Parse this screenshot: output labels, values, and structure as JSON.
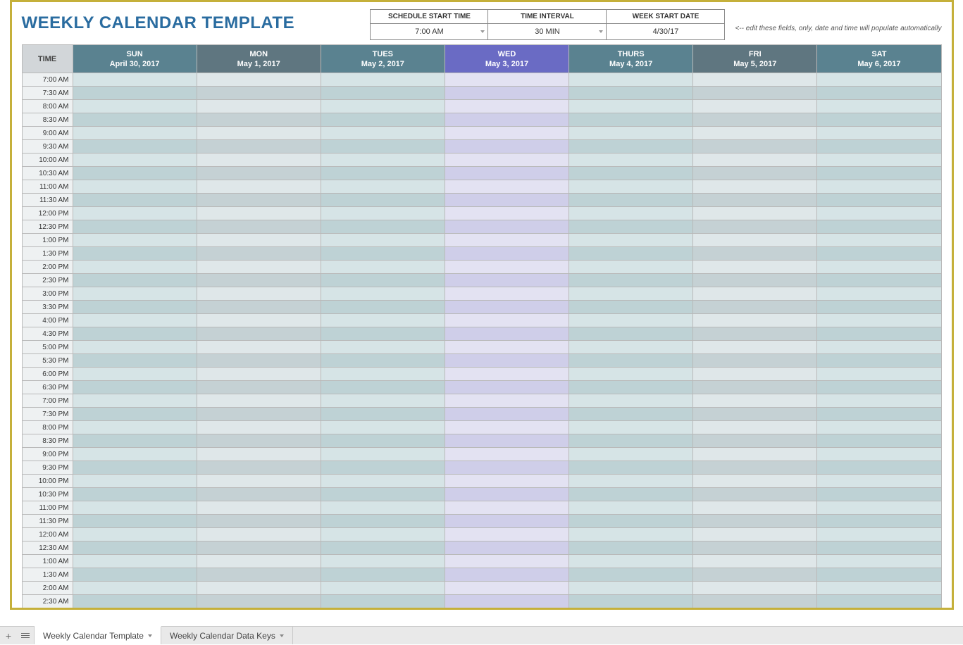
{
  "title": "WEEKLY CALENDAR TEMPLATE",
  "config": {
    "fields": [
      {
        "label": "SCHEDULE START TIME",
        "value": "7:00 AM",
        "dropdown": true
      },
      {
        "label": "TIME INTERVAL",
        "value": "30 MIN",
        "dropdown": true
      },
      {
        "label": "WEEK START DATE",
        "value": "4/30/17",
        "dropdown": false
      }
    ],
    "hint": "<-- edit these fields, only, date and time will populate automatically"
  },
  "calendar": {
    "corner_label": "TIME",
    "days": [
      {
        "abbr": "SUN",
        "date": "April 30, 2017",
        "header_bg": "#5a8290",
        "even_bg": "#d6e4e6",
        "odd_bg": "#bed2d5"
      },
      {
        "abbr": "MON",
        "date": "May 1, 2017",
        "header_bg": "#5f7680",
        "even_bg": "#dfe7e9",
        "odd_bg": "#c5d1d4"
      },
      {
        "abbr": "TUES",
        "date": "May 2, 2017",
        "header_bg": "#5a8290",
        "even_bg": "#d6e4e6",
        "odd_bg": "#bed2d5"
      },
      {
        "abbr": "WED",
        "date": "May 3, 2017",
        "header_bg": "#6a6bc4",
        "even_bg": "#e3e2f2",
        "odd_bg": "#cfcee9"
      },
      {
        "abbr": "THURS",
        "date": "May 4, 2017",
        "header_bg": "#5a8290",
        "even_bg": "#d6e4e6",
        "odd_bg": "#bed2d5"
      },
      {
        "abbr": "FRI",
        "date": "May 5, 2017",
        "header_bg": "#5f7680",
        "even_bg": "#dfe7e9",
        "odd_bg": "#c5d1d4"
      },
      {
        "abbr": "SAT",
        "date": "May 6, 2017",
        "header_bg": "#5a8290",
        "even_bg": "#d6e4e6",
        "odd_bg": "#bed2d5"
      }
    ],
    "time_slots": [
      "7:00 AM",
      "7:30 AM",
      "8:00 AM",
      "8:30 AM",
      "9:00 AM",
      "9:30 AM",
      "10:00 AM",
      "10:30 AM",
      "11:00 AM",
      "11:30 AM",
      "12:00 PM",
      "12:30 PM",
      "1:00 PM",
      "1:30 PM",
      "2:00 PM",
      "2:30 PM",
      "3:00 PM",
      "3:30 PM",
      "4:00 PM",
      "4:30 PM",
      "5:00 PM",
      "5:30 PM",
      "6:00 PM",
      "6:30 PM",
      "7:00 PM",
      "7:30 PM",
      "8:00 PM",
      "8:30 PM",
      "9:00 PM",
      "9:30 PM",
      "10:00 PM",
      "10:30 PM",
      "11:00 PM",
      "11:30 PM",
      "12:00 AM",
      "12:30 AM",
      "1:00 AM",
      "1:30 AM",
      "2:00 AM",
      "2:30 AM"
    ],
    "time_cell_bg": "#eef1f2"
  },
  "sheets": {
    "tabs": [
      {
        "label": "Weekly Calendar Template",
        "active": true
      },
      {
        "label": "Weekly Calendar Data Keys",
        "active": false
      }
    ]
  }
}
